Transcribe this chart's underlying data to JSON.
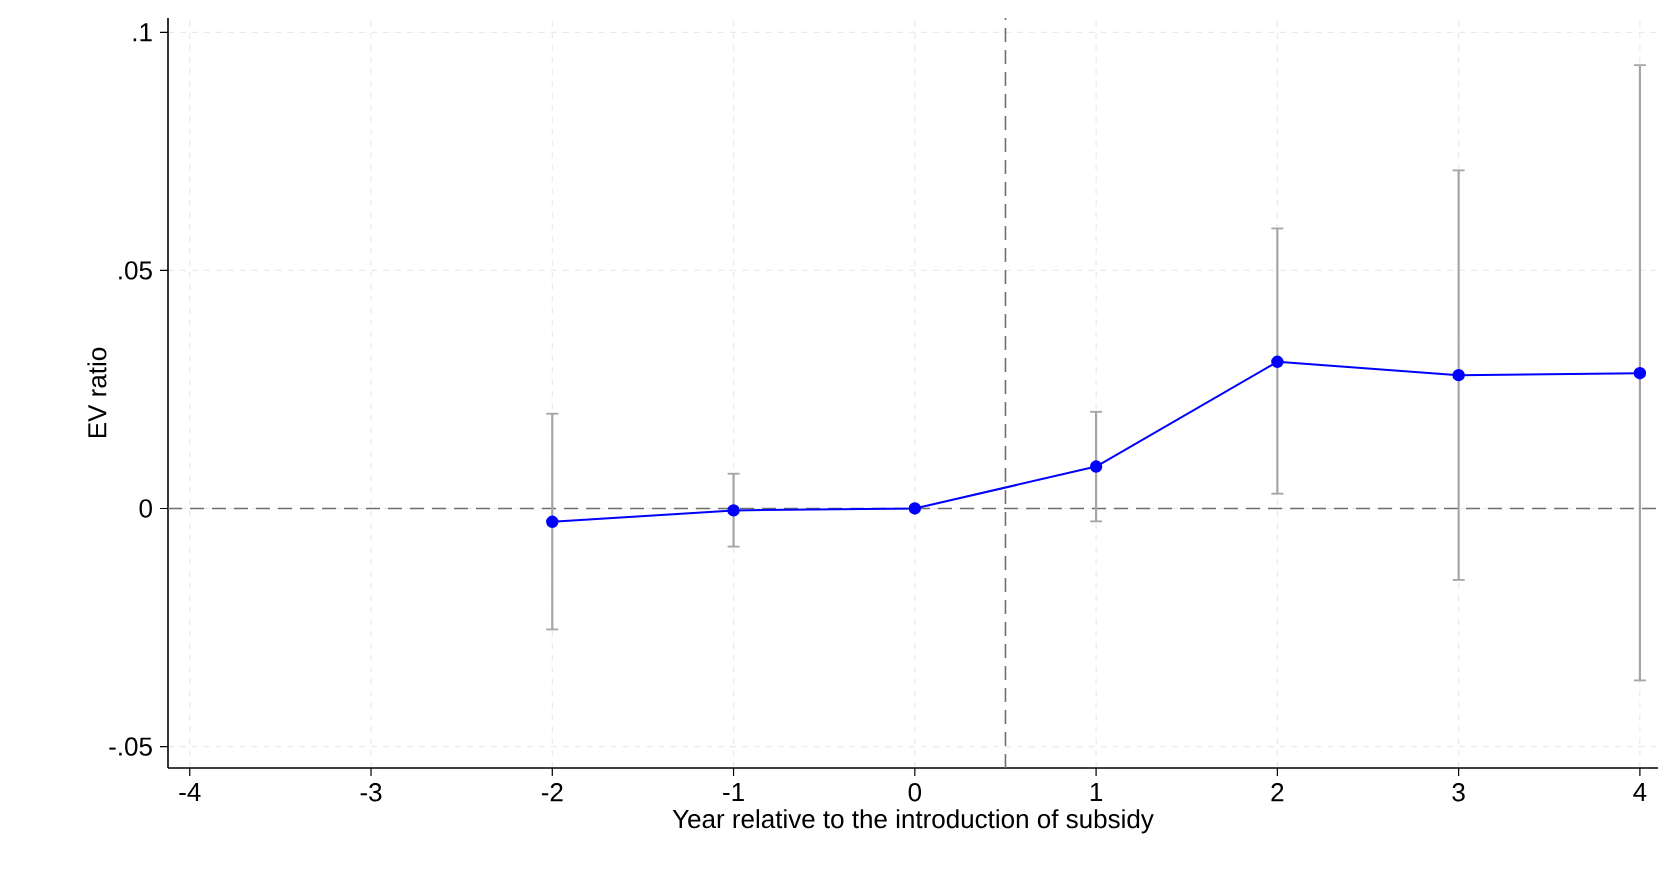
{
  "chart_data": {
    "type": "line",
    "xlabel": "Year relative to the introduction of subsidy",
    "ylabel": "EV ratio",
    "x": [
      -2,
      -1,
      0,
      1,
      2,
      3,
      4
    ],
    "series": [
      {
        "color": "#0000ff",
        "values": [
          -0.0028,
          -0.0004,
          0,
          0.0088,
          0.0308,
          0.028,
          0.0284
        ],
        "errors": [
          [
            -0.0254,
            0.0199
          ],
          [
            -0.008,
            0.0073
          ],
          null,
          [
            -0.0027,
            0.0203
          ],
          [
            0.0031,
            0.0588
          ],
          [
            -0.015,
            0.071
          ],
          [
            -0.0361,
            0.0931
          ]
        ]
      }
    ],
    "xlim": [
      -4.12,
      4.1
    ],
    "ylim": [
      -0.0545,
      0.103
    ],
    "xticks": [
      -4,
      -3,
      -2,
      -1,
      0,
      1,
      2,
      3,
      4
    ],
    "yticks": [
      {
        "value": -0.05,
        "label": "-.05"
      },
      {
        "value": 0,
        "label": "0"
      },
      {
        "value": 0.05,
        "label": ".05"
      },
      {
        "value": 0.1,
        "label": ".1"
      }
    ],
    "grid": true,
    "marker": "circle",
    "line_style": "solid",
    "ref_lines": [
      {
        "axis": "y",
        "value": 0,
        "color": "#6e6e6e",
        "line_style": "dashed"
      },
      {
        "axis": "x",
        "value": 0.5,
        "color": "#6e6e6e",
        "line_style": "dashed"
      }
    ]
  }
}
